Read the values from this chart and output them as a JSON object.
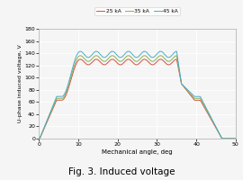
{
  "title": "Fig. 3. Induced voltage",
  "xlabel": "Mechanical angle, deg",
  "ylabel": "U-phase induced voltage, V",
  "xlim": [
    0,
    50
  ],
  "ylim": [
    0,
    180
  ],
  "xticks": [
    0,
    10,
    20,
    30,
    40,
    50
  ],
  "yticks": [
    0,
    20,
    40,
    60,
    80,
    100,
    120,
    140,
    160,
    180
  ],
  "legend_labels": [
    "25 kA",
    "35 kA",
    "45 kA"
  ],
  "colors": [
    "#d94f3d",
    "#8db050",
    "#4bacc6"
  ],
  "background_color": "#f5f5f5",
  "curve_base": [
    130,
    136,
    143
  ],
  "shoulder_vals": [
    63,
    66,
    69
  ],
  "ripple_amps": [
    9,
    9.5,
    10
  ]
}
